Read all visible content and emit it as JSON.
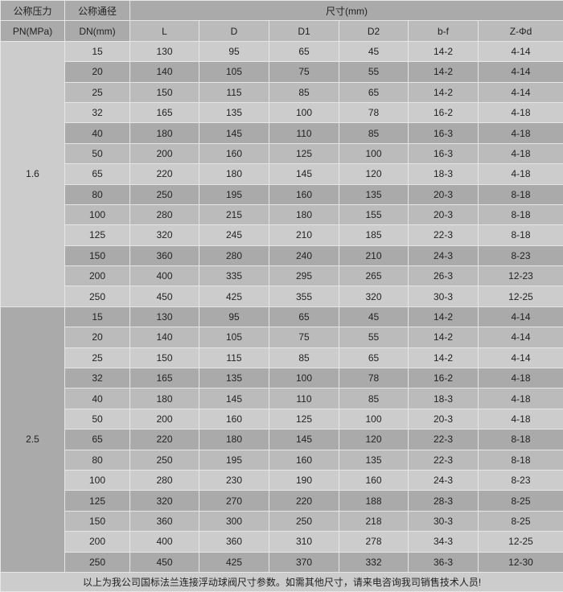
{
  "header": {
    "pressure_label": "公称压力",
    "pressure_unit": "PN(MPa)",
    "diameter_label": "公称通径",
    "diameter_unit": "DN(mm)",
    "dimensions_label": "尺寸(mm)",
    "columns": [
      "L",
      "D",
      "D1",
      "D2",
      "b-f",
      "Z-Φd"
    ]
  },
  "groups": [
    {
      "pn": "1.6",
      "rows": [
        [
          "15",
          "130",
          "95",
          "65",
          "45",
          "14-2",
          "4-14"
        ],
        [
          "20",
          "140",
          "105",
          "75",
          "55",
          "14-2",
          "4-14"
        ],
        [
          "25",
          "150",
          "115",
          "85",
          "65",
          "14-2",
          "4-14"
        ],
        [
          "32",
          "165",
          "135",
          "100",
          "78",
          "16-2",
          "4-18"
        ],
        [
          "40",
          "180",
          "145",
          "110",
          "85",
          "16-3",
          "4-18"
        ],
        [
          "50",
          "200",
          "160",
          "125",
          "100",
          "16-3",
          "4-18"
        ],
        [
          "65",
          "220",
          "180",
          "145",
          "120",
          "18-3",
          "4-18"
        ],
        [
          "80",
          "250",
          "195",
          "160",
          "135",
          "20-3",
          "8-18"
        ],
        [
          "100",
          "280",
          "215",
          "180",
          "155",
          "20-3",
          "8-18"
        ],
        [
          "125",
          "320",
          "245",
          "210",
          "185",
          "22-3",
          "8-18"
        ],
        [
          "150",
          "360",
          "280",
          "240",
          "210",
          "24-3",
          "8-23"
        ],
        [
          "200",
          "400",
          "335",
          "295",
          "265",
          "26-3",
          "12-23"
        ],
        [
          "250",
          "450",
          "425",
          "355",
          "320",
          "30-3",
          "12-25"
        ]
      ]
    },
    {
      "pn": "2.5",
      "rows": [
        [
          "15",
          "130",
          "95",
          "65",
          "45",
          "14-2",
          "4-14"
        ],
        [
          "20",
          "140",
          "105",
          "75",
          "55",
          "14-2",
          "4-14"
        ],
        [
          "25",
          "150",
          "115",
          "85",
          "65",
          "14-2",
          "4-14"
        ],
        [
          "32",
          "165",
          "135",
          "100",
          "78",
          "16-2",
          "4-18"
        ],
        [
          "40",
          "180",
          "145",
          "110",
          "85",
          "18-3",
          "4-18"
        ],
        [
          "50",
          "200",
          "160",
          "125",
          "100",
          "20-3",
          "4-18"
        ],
        [
          "65",
          "220",
          "180",
          "145",
          "120",
          "22-3",
          "8-18"
        ],
        [
          "80",
          "250",
          "195",
          "160",
          "135",
          "22-3",
          "8-18"
        ],
        [
          "100",
          "280",
          "230",
          "190",
          "160",
          "24-3",
          "8-23"
        ],
        [
          "125",
          "320",
          "270",
          "220",
          "188",
          "28-3",
          "8-25"
        ],
        [
          "150",
          "360",
          "300",
          "250",
          "218",
          "30-3",
          "8-25"
        ],
        [
          "200",
          "400",
          "360",
          "310",
          "278",
          "34-3",
          "12-25"
        ],
        [
          "250",
          "450",
          "425",
          "370",
          "332",
          "36-3",
          "12-30"
        ]
      ]
    }
  ],
  "footer": "以上为我公司国标法兰连接浮动球阀尺寸参数。如需其他尺寸，请来电咨询我司销售技术人员!"
}
